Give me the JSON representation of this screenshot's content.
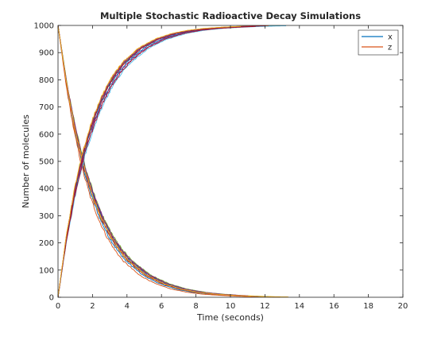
{
  "chart_data": {
    "type": "line",
    "title": "Multiple Stochastic Radioactive Decay Simulations",
    "xlabel": "Time (seconds)",
    "ylabel": "Number of molecules",
    "xlim": [
      0,
      20
    ],
    "ylim": [
      0,
      1000
    ],
    "xticks": [
      0,
      2,
      4,
      6,
      8,
      10,
      12,
      14,
      16,
      18,
      20
    ],
    "yticks": [
      0,
      100,
      200,
      300,
      400,
      500,
      600,
      700,
      800,
      900,
      1000
    ],
    "grid": false,
    "legend_position": "top-right",
    "legend": [
      {
        "label": "x",
        "color": "#0072BD"
      },
      {
        "label": "z",
        "color": "#D95319"
      }
    ],
    "run_colors": [
      "#0072BD",
      "#D95319",
      "#EDB120",
      "#7E2F8E",
      "#77AC30",
      "#4DBEEE",
      "#A2142F",
      "#0072BD",
      "#D95319",
      "#7E2F8E",
      "#A2142F",
      "#EDB120"
    ],
    "time_points": [
      0,
      0.5,
      1,
      1.5,
      2,
      2.5,
      3,
      3.5,
      4,
      5,
      6,
      7,
      8,
      9,
      10,
      11,
      12,
      14
    ],
    "series": [
      {
        "name": "x",
        "values": [
          1000,
          779,
          607,
          472,
          368,
          287,
          223,
          174,
          135,
          82,
          50,
          30,
          18,
          11,
          7,
          4,
          2,
          0
        ]
      },
      {
        "name": "z",
        "values": [
          0,
          221,
          393,
          528,
          632,
          713,
          777,
          826,
          865,
          918,
          950,
          970,
          982,
          989,
          993,
          996,
          998,
          1000
        ]
      }
    ]
  }
}
